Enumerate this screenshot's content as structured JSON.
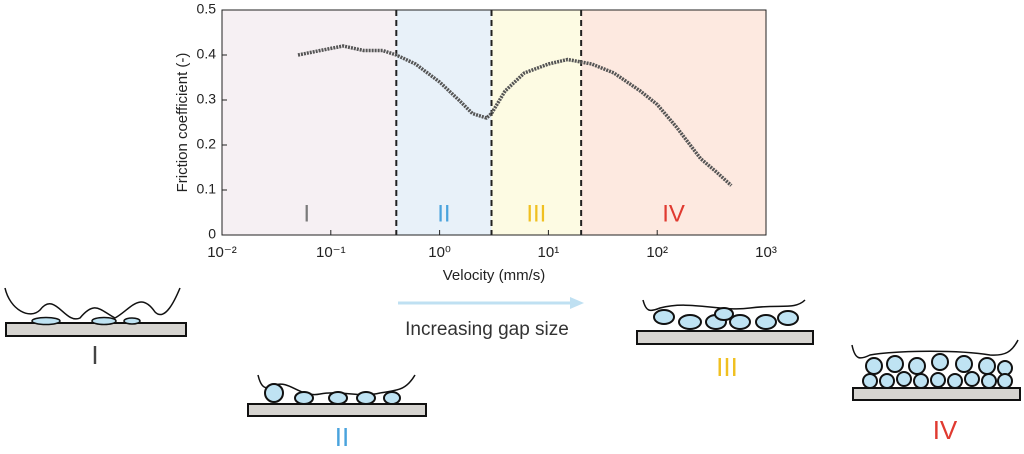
{
  "chart_data": {
    "type": "line",
    "x_label": "Velocity (mm/s)",
    "y_label": "Friction coefficient (-)",
    "xscale": "log",
    "xlim": [
      0.01,
      1000
    ],
    "ylim": [
      0,
      0.5
    ],
    "xticks": [
      {
        "value": 0.01,
        "label": "10⁻²"
      },
      {
        "value": 0.1,
        "label": "10⁻¹"
      },
      {
        "value": 1,
        "label": "10⁰"
      },
      {
        "value": 10,
        "label": "10¹"
      },
      {
        "value": 100,
        "label": "10²"
      },
      {
        "value": 1000,
        "label": "10³"
      }
    ],
    "yticks": [
      0,
      0.1,
      0.2,
      0.3,
      0.4,
      0.5
    ],
    "regions": [
      {
        "label": "I",
        "start": 0.01,
        "end": 0.4,
        "color": "#f6f0f3",
        "label_color": "#7a7a7a"
      },
      {
        "label": "II",
        "start": 0.4,
        "end": 3,
        "color": "#e8f1f9",
        "label_color": "#4aa3dd"
      },
      {
        "label": "III",
        "start": 3,
        "end": 20,
        "color": "#fdfbe3",
        "label_color": "#f0c020"
      },
      {
        "label": "IV",
        "start": 20,
        "end": 1000,
        "color": "#fde9e0",
        "label_color": "#e03a30"
      }
    ],
    "series": [
      {
        "color": "#555555",
        "x": [
          0.05,
          0.08,
          0.13,
          0.2,
          0.3,
          0.4,
          0.6,
          1,
          1.5,
          2,
          2.7,
          3,
          4,
          6,
          10,
          15,
          25,
          40,
          70,
          100,
          150,
          250,
          350,
          480
        ],
        "values": [
          0.4,
          0.41,
          0.42,
          0.41,
          0.41,
          0.4,
          0.38,
          0.34,
          0.3,
          0.27,
          0.26,
          0.27,
          0.32,
          0.36,
          0.38,
          0.39,
          0.38,
          0.36,
          0.32,
          0.29,
          0.24,
          0.17,
          0.14,
          0.11
        ]
      }
    ]
  },
  "arrow_label": "Increasing gap size",
  "schematic_labels": [
    "I",
    "II",
    "III",
    "IV"
  ]
}
